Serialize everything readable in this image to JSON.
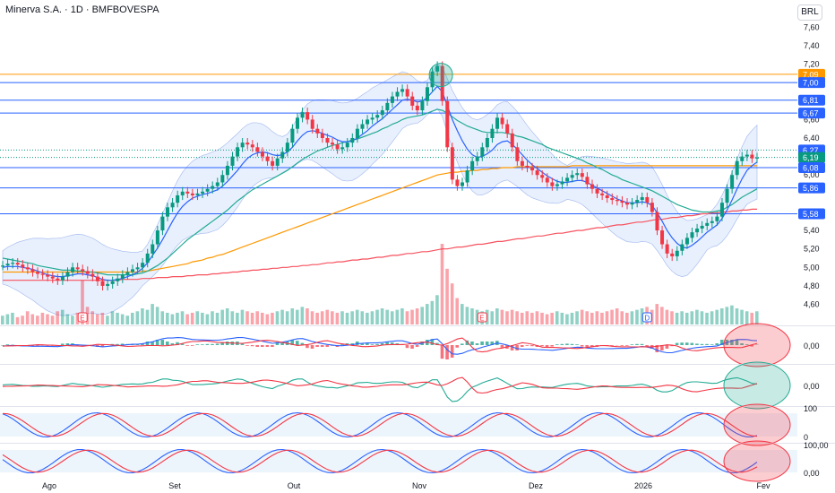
{
  "header": {
    "title": "Minerva S.A. · 1D · BMFBOVESPA",
    "currency": "BRL"
  },
  "colors": {
    "up": "#089981",
    "down": "#f23645",
    "sma_short": "#2962ff",
    "sma_mid": "#22ab94",
    "sma_long": "#ff9800",
    "sma_200": "#f7525f",
    "band_fill": "#d6e4fb",
    "level_line": "#2962ff",
    "orange_level": "#ff9800"
  },
  "chart_data": {
    "type": "candlestick",
    "title": "Minerva S.A. · 1D · BMFBOVESPA",
    "ylabel": "BRL",
    "ylim": [
      4.45,
      7.7
    ],
    "y_ticks": [
      "7,60",
      "7,40",
      "7,20",
      "6,60",
      "6,40",
      "6,20",
      "6,00",
      "5,60",
      "5,40",
      "5,20",
      "5,00",
      "4,80",
      "4,60"
    ],
    "x_labels": [
      "Ago",
      "Set",
      "Out",
      "Nov",
      "Dez",
      "2026",
      "Fev"
    ],
    "price_levels": [
      {
        "label": "7,09",
        "value": 7.09,
        "style": "orange"
      },
      {
        "label": "7,00",
        "value": 7.0,
        "style": "blue"
      },
      {
        "label": "6,81",
        "value": 6.81,
        "style": "blue"
      },
      {
        "label": "6,67",
        "value": 6.67,
        "style": "blue"
      },
      {
        "label": "6,27",
        "value": 6.27,
        "style": "dotted"
      },
      {
        "label": "6,19",
        "value": 6.19,
        "style": "last"
      },
      {
        "label": "6,08",
        "value": 6.08,
        "style": "blue"
      },
      {
        "label": "5,86",
        "value": 5.86,
        "style": "blue"
      },
      {
        "label": "5,58",
        "value": 5.58,
        "style": "blue"
      }
    ],
    "close": [
      5.02,
      5.04,
      5.05,
      5.03,
      5.0,
      4.98,
      4.95,
      4.93,
      4.92,
      4.9,
      4.88,
      4.86,
      4.9,
      4.95,
      5.0,
      4.98,
      4.96,
      4.93,
      4.9,
      4.85,
      4.8,
      4.82,
      4.85,
      4.88,
      4.92,
      4.95,
      4.98,
      5.0,
      5.05,
      5.15,
      5.25,
      5.4,
      5.55,
      5.65,
      5.7,
      5.78,
      5.82,
      5.8,
      5.78,
      5.8,
      5.82,
      5.85,
      5.88,
      5.92,
      6.0,
      6.1,
      6.2,
      6.3,
      6.35,
      6.33,
      6.3,
      6.25,
      6.2,
      6.15,
      6.1,
      6.18,
      6.25,
      6.35,
      6.5,
      6.62,
      6.68,
      6.6,
      6.5,
      6.45,
      6.4,
      6.35,
      6.33,
      6.28,
      6.3,
      6.35,
      6.4,
      6.5,
      6.55,
      6.6,
      6.62,
      6.65,
      6.7,
      6.78,
      6.85,
      6.9,
      6.93,
      6.85,
      6.75,
      6.7,
      6.8,
      6.95,
      7.12,
      7.18,
      6.8,
      6.3,
      5.95,
      5.88,
      5.92,
      6.05,
      6.15,
      6.2,
      6.3,
      6.4,
      6.5,
      6.62,
      6.55,
      6.45,
      6.3,
      6.15,
      6.1,
      6.08,
      6.05,
      6.0,
      5.97,
      5.92,
      5.88,
      5.9,
      5.93,
      5.97,
      6.0,
      6.02,
      5.98,
      5.9,
      5.85,
      5.8,
      5.78,
      5.75,
      5.73,
      5.72,
      5.7,
      5.68,
      5.7,
      5.73,
      5.76,
      5.7,
      5.6,
      5.4,
      5.25,
      5.15,
      5.12,
      5.18,
      5.25,
      5.32,
      5.38,
      5.42,
      5.45,
      5.48,
      5.5,
      5.55,
      5.7,
      5.85,
      6.0,
      6.15,
      6.2,
      6.22,
      6.18,
      6.19
    ],
    "sma_short": [
      5.0,
      5.01,
      5.01,
      5.01,
      5.0,
      4.99,
      4.98,
      4.96,
      4.94,
      4.92,
      4.91,
      4.9,
      4.9,
      4.91,
      4.92,
      4.93,
      4.93,
      4.92,
      4.91,
      4.89,
      4.87,
      4.86,
      4.86,
      4.87,
      4.88,
      4.9,
      4.92,
      4.95,
      4.99,
      5.05,
      5.13,
      5.21,
      5.3,
      5.4,
      5.5,
      5.59,
      5.66,
      5.71,
      5.75,
      5.77,
      5.79,
      5.8,
      5.82,
      5.84,
      5.88,
      5.93,
      5.99,
      6.05,
      6.12,
      6.18,
      6.22,
      6.24,
      6.25,
      6.24,
      6.22,
      6.21,
      6.22,
      6.25,
      6.3,
      6.37,
      6.43,
      6.47,
      6.48,
      6.47,
      6.45,
      6.43,
      6.41,
      6.38,
      6.36,
      6.36,
      6.37,
      6.4,
      6.44,
      6.48,
      6.53,
      6.57,
      6.61,
      6.66,
      6.71,
      6.76,
      6.81,
      6.82,
      6.81,
      6.79,
      6.8,
      6.84,
      6.9,
      6.96,
      6.9,
      6.75,
      6.6,
      6.48,
      6.37,
      6.28,
      6.22,
      6.19,
      6.2,
      6.23,
      6.27,
      6.33,
      6.36,
      6.37,
      6.33,
      6.28,
      6.22,
      6.16,
      6.11,
      6.07,
      6.03,
      5.99,
      5.96,
      5.93,
      5.92,
      5.92,
      5.93,
      5.94,
      5.94,
      5.92,
      5.89,
      5.86,
      5.83,
      5.8,
      5.77,
      5.74,
      5.72,
      5.7,
      5.7,
      5.7,
      5.71,
      5.7,
      5.67,
      5.59,
      5.5,
      5.4,
      5.32,
      5.26,
      5.22,
      5.21,
      5.24,
      5.28,
      5.33,
      5.38,
      5.42,
      5.46,
      5.53,
      5.62,
      5.73,
      5.85,
      5.96,
      6.05,
      6.1,
      6.14
    ],
    "sma_mid": [
      5.1,
      5.09,
      5.08,
      5.07,
      5.06,
      5.05,
      5.04,
      5.02,
      5.01,
      5.0,
      4.99,
      4.98,
      4.97,
      4.97,
      4.97,
      4.96,
      4.96,
      4.95,
      4.95,
      4.94,
      4.93,
      4.92,
      4.92,
      4.92,
      4.92,
      4.92,
      4.92,
      4.93,
      4.94,
      4.96,
      4.99,
      5.02,
      5.06,
      5.1,
      5.15,
      5.2,
      5.25,
      5.3,
      5.34,
      5.38,
      5.42,
      5.46,
      5.5,
      5.54,
      5.58,
      5.62,
      5.67,
      5.72,
      5.76,
      5.8,
      5.84,
      5.87,
      5.9,
      5.93,
      5.96,
      5.99,
      6.02,
      6.05,
      6.09,
      6.13,
      6.17,
      6.2,
      6.23,
      6.26,
      6.28,
      6.3,
      6.32,
      6.33,
      6.35,
      6.36,
      6.38,
      6.39,
      6.41,
      6.43,
      6.45,
      6.47,
      6.5,
      6.52,
      6.55,
      6.57,
      6.6,
      6.62,
      6.63,
      6.64,
      6.65,
      6.67,
      6.69,
      6.71,
      6.7,
      6.67,
      6.63,
      6.59,
      6.56,
      6.53,
      6.51,
      6.49,
      6.47,
      6.46,
      6.46,
      6.46,
      6.46,
      6.45,
      6.44,
      6.42,
      6.41,
      6.39,
      6.37,
      6.35,
      6.33,
      6.3,
      6.28,
      6.26,
      6.24,
      6.22,
      6.2,
      6.18,
      6.16,
      6.13,
      6.11,
      6.08,
      6.06,
      6.03,
      6.0,
      5.98,
      5.95,
      5.93,
      5.91,
      5.89,
      5.87,
      5.85,
      5.83,
      5.8,
      5.77,
      5.74,
      5.71,
      5.68,
      5.66,
      5.64,
      5.62,
      5.61,
      5.6,
      5.6,
      5.6,
      5.61,
      5.62,
      5.65,
      5.68,
      5.72,
      5.76,
      5.79,
      5.82,
      5.85
    ],
    "sma_long": [
      4.95,
      4.95,
      4.95,
      4.95,
      4.95,
      4.95,
      4.95,
      4.95,
      4.95,
      4.95,
      4.95,
      4.95,
      4.95,
      4.95,
      4.95,
      4.95,
      4.95,
      4.95,
      4.95,
      4.95,
      4.95,
      4.95,
      4.95,
      4.95,
      4.95,
      4.95,
      4.95,
      4.95,
      4.96,
      4.96,
      4.97,
      4.98,
      4.99,
      5.0,
      5.01,
      5.02,
      5.03,
      5.04,
      5.06,
      5.07,
      5.08,
      5.1,
      5.11,
      5.13,
      5.14,
      5.16,
      5.18,
      5.2,
      5.22,
      5.24,
      5.26,
      5.28,
      5.3,
      5.32,
      5.34,
      5.36,
      5.38,
      5.4,
      5.42,
      5.44,
      5.46,
      5.48,
      5.5,
      5.52,
      5.54,
      5.56,
      5.58,
      5.6,
      5.62,
      5.64,
      5.66,
      5.68,
      5.7,
      5.72,
      5.74,
      5.76,
      5.78,
      5.8,
      5.82,
      5.84,
      5.86,
      5.88,
      5.9,
      5.92,
      5.94,
      5.96,
      5.98,
      6.0,
      6.01,
      6.02,
      6.03,
      6.03,
      6.04,
      6.04,
      6.05,
      6.05,
      6.06,
      6.06,
      6.07,
      6.07,
      6.08,
      6.08,
      6.08,
      6.09,
      6.09,
      6.09,
      6.09,
      6.09,
      6.09,
      6.09,
      6.09,
      6.09,
      6.09,
      6.09,
      6.1,
      6.1,
      6.1,
      6.1,
      6.1,
      6.1,
      6.1,
      6.1,
      6.1,
      6.1,
      6.1,
      6.1,
      6.1,
      6.1,
      6.1,
      6.1,
      6.1,
      6.1,
      6.1,
      6.1,
      6.1,
      6.1,
      6.1,
      6.1,
      6.1,
      6.1,
      6.1,
      6.1,
      6.1,
      6.1,
      6.1,
      6.1,
      6.1,
      6.1,
      6.1,
      6.1,
      6.1,
      6.1
    ],
    "sma_200": [
      4.86,
      4.86,
      4.86,
      4.86,
      4.86,
      4.86,
      4.86,
      4.86,
      4.86,
      4.86,
      4.86,
      4.86,
      4.86,
      4.86,
      4.86,
      4.86,
      4.86,
      4.86,
      4.86,
      4.86,
      4.86,
      4.86,
      4.86,
      4.86,
      4.87,
      4.87,
      4.87,
      4.87,
      4.88,
      4.88,
      4.88,
      4.89,
      4.89,
      4.89,
      4.9,
      4.9,
      4.9,
      4.91,
      4.91,
      4.92,
      4.92,
      4.92,
      4.93,
      4.93,
      4.94,
      4.94,
      4.95,
      4.95,
      4.96,
      4.96,
      4.97,
      4.97,
      4.98,
      4.98,
      4.99,
      4.99,
      5.0,
      5.0,
      5.01,
      5.01,
      5.02,
      5.02,
      5.03,
      5.03,
      5.04,
      5.05,
      5.05,
      5.06,
      5.06,
      5.07,
      5.08,
      5.08,
      5.09,
      5.09,
      5.1,
      5.11,
      5.11,
      5.12,
      5.13,
      5.13,
      5.14,
      5.15,
      5.15,
      5.16,
      5.17,
      5.17,
      5.18,
      5.19,
      5.2,
      5.2,
      5.21,
      5.22,
      5.22,
      5.23,
      5.24,
      5.25,
      5.25,
      5.26,
      5.27,
      5.28,
      5.28,
      5.29,
      5.3,
      5.31,
      5.31,
      5.32,
      5.33,
      5.34,
      5.34,
      5.35,
      5.36,
      5.37,
      5.37,
      5.38,
      5.39,
      5.4,
      5.4,
      5.41,
      5.42,
      5.43,
      5.43,
      5.44,
      5.45,
      5.46,
      5.46,
      5.47,
      5.48,
      5.49,
      5.49,
      5.5,
      5.51,
      5.52,
      5.52,
      5.53,
      5.54,
      5.54,
      5.55,
      5.56,
      5.56,
      5.57,
      5.58,
      5.58,
      5.59,
      5.59,
      5.6,
      5.6,
      5.61,
      5.61,
      5.62,
      5.62,
      5.63,
      5.63
    ],
    "volume": [
      6,
      7,
      8,
      5,
      6,
      9,
      7,
      6,
      8,
      7,
      6,
      9,
      10,
      7,
      6,
      8,
      30,
      12,
      9,
      7,
      8,
      6,
      9,
      8,
      7,
      6,
      8,
      9,
      11,
      10,
      14,
      12,
      9,
      8,
      7,
      8,
      9,
      7,
      8,
      9,
      8,
      7,
      9,
      8,
      10,
      11,
      9,
      8,
      10,
      9,
      8,
      9,
      8,
      7,
      8,
      9,
      10,
      9,
      11,
      10,
      12,
      11,
      9,
      8,
      9,
      10,
      9,
      8,
      9,
      8,
      9,
      10,
      9,
      8,
      9,
      10,
      11,
      10,
      9,
      10,
      11,
      9,
      10,
      11,
      12,
      14,
      16,
      20,
      55,
      38,
      28,
      18,
      14,
      12,
      11,
      10,
      9,
      10,
      9,
      11,
      10,
      9,
      10,
      9,
      8,
      9,
      8,
      9,
      8,
      7,
      8,
      9,
      8,
      7,
      8,
      9,
      10,
      9,
      8,
      9,
      8,
      9,
      10,
      11,
      9,
      8,
      9,
      10,
      11,
      12,
      10,
      14,
      12,
      10,
      9,
      8,
      9,
      8,
      9,
      10,
      9,
      8,
      9,
      10,
      11,
      12,
      13,
      11,
      10,
      9,
      8,
      9
    ],
    "events": [
      {
        "label": "E",
        "bar": 16
      },
      {
        "label": "E",
        "bar": 96
      },
      {
        "label": "D",
        "bar": 129
      }
    ],
    "macd_axis": "0,00",
    "oscillator_axis": "0,00",
    "stoch_axis_top": "100",
    "stoch_axis_bottom": "0",
    "stochrsi_axis_top": "100,00",
    "stochrsi_axis_bottom": "0,00"
  }
}
